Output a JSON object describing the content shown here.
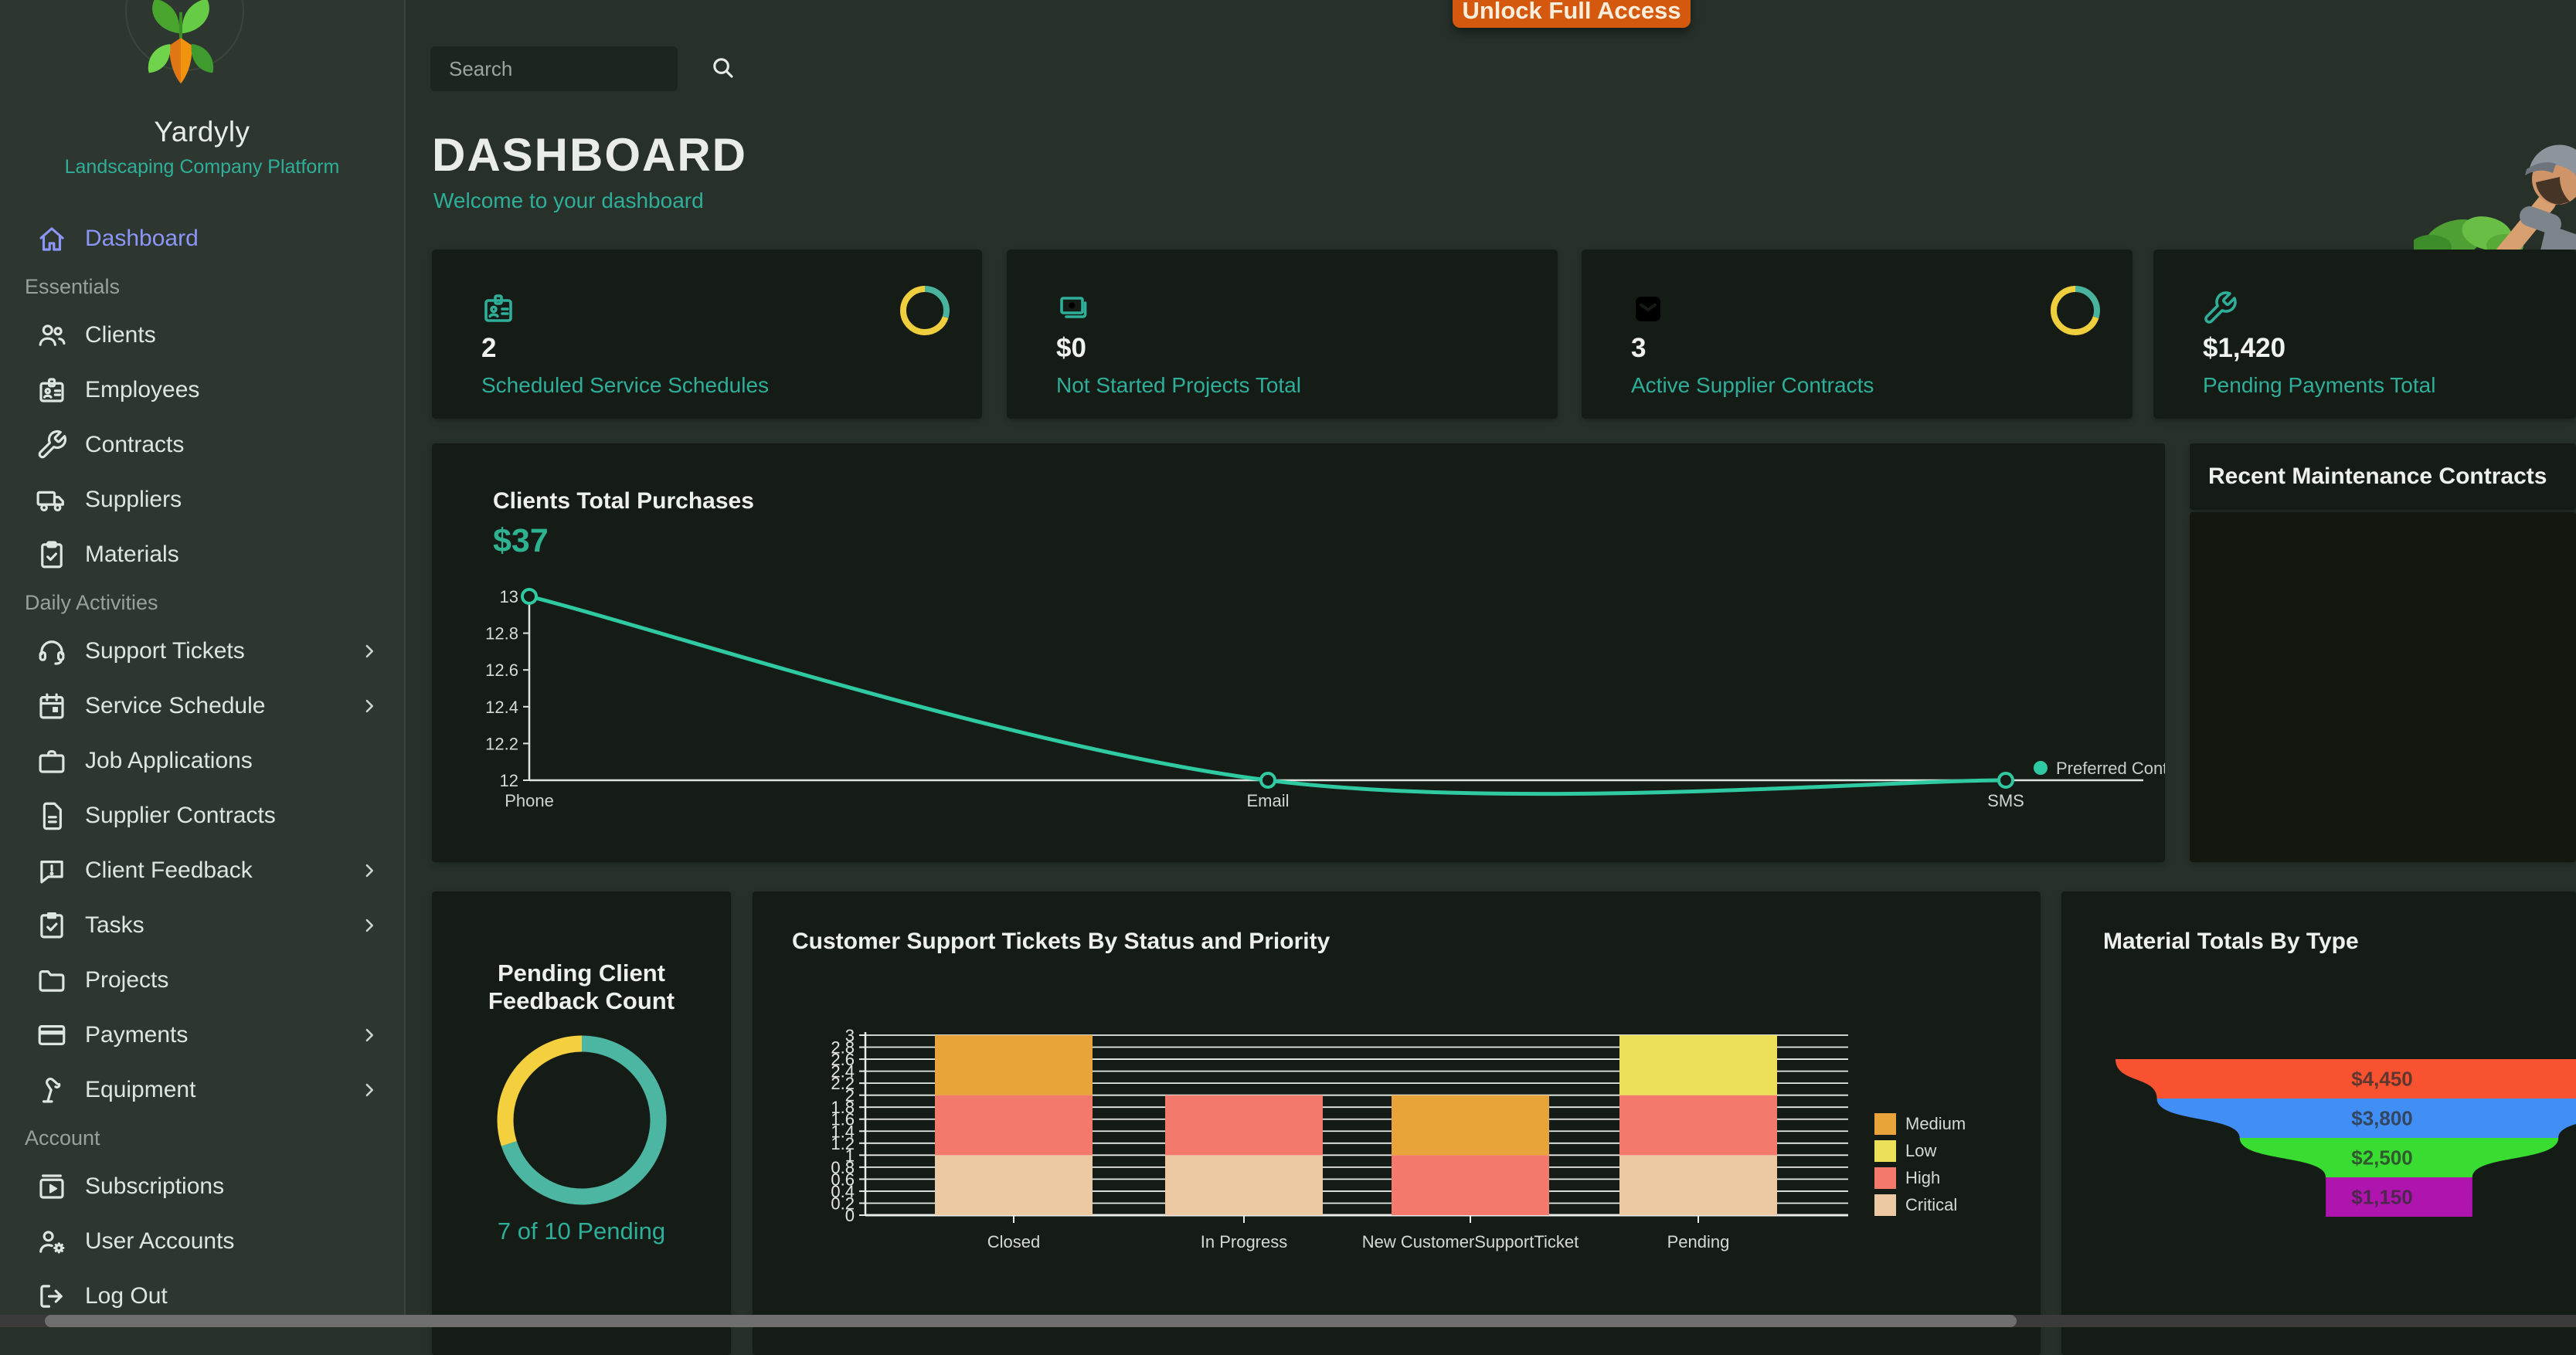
{
  "app": {
    "name": "Yardyly",
    "tagline": "Landscaping Company Platform"
  },
  "topbar": {
    "search_placeholder": "Search",
    "unlock_button": "Unlock Full Access"
  },
  "header": {
    "title": "DASHBOARD",
    "subtitle": "Welcome to your dashboard"
  },
  "sidebar": {
    "primary": {
      "label": "Dashboard",
      "icon": "home"
    },
    "sections": [
      {
        "title": "Essentials",
        "items": [
          {
            "label": "Clients",
            "icon": "users",
            "expandable": false
          },
          {
            "label": "Employees",
            "icon": "id-badge",
            "expandable": false
          },
          {
            "label": "Contracts",
            "icon": "wrench",
            "expandable": false
          },
          {
            "label": "Suppliers",
            "icon": "truck",
            "expandable": false
          },
          {
            "label": "Materials",
            "icon": "clipboard-check",
            "expandable": false
          }
        ]
      },
      {
        "title": "Daily Activities",
        "items": [
          {
            "label": "Support Tickets",
            "icon": "headset",
            "expandable": true
          },
          {
            "label": "Service Schedule",
            "icon": "calendar",
            "expandable": true
          },
          {
            "label": "Job Applications",
            "icon": "briefcase",
            "expandable": false
          },
          {
            "label": "Supplier Contracts",
            "icon": "file",
            "expandable": false
          },
          {
            "label": "Client Feedback",
            "icon": "chat-alert",
            "expandable": true
          },
          {
            "label": "Tasks",
            "icon": "tasks",
            "expandable": true
          },
          {
            "label": "Projects",
            "icon": "folder",
            "expandable": false
          },
          {
            "label": "Payments",
            "icon": "credit-card",
            "expandable": true
          },
          {
            "label": "Equipment",
            "icon": "lamp",
            "expandable": true
          }
        ]
      },
      {
        "title": "Account",
        "items": [
          {
            "label": "Subscriptions",
            "icon": "subscriptions",
            "expandable": false
          },
          {
            "label": "User Accounts",
            "icon": "user-gear",
            "expandable": false
          }
        ]
      }
    ],
    "footer_item": {
      "label": "Log Out",
      "icon": "logout"
    }
  },
  "stat_cards": [
    {
      "icon": "id-badge",
      "value": "2",
      "label": "Scheduled Service Schedules",
      "ring": true
    },
    {
      "icon": "cash",
      "value": "$0",
      "label": "Not Started Projects Total",
      "ring": false
    },
    {
      "icon": "inbox",
      "value": "3",
      "label": "Active Supplier Contracts",
      "ring": true
    },
    {
      "icon": "wrench",
      "value": "$1,420",
      "label": "Pending Payments Total",
      "ring": false
    }
  ],
  "panels": {
    "purchases": {
      "title": "Clients Total Purchases",
      "value": "$37",
      "legend": "Preferred Cont"
    },
    "recent_contracts": {
      "title": "Recent Maintenance Contracts"
    },
    "feedback": {
      "title_line1": "Pending Client",
      "title_line2": "Feedback Count",
      "caption": "7 of 10 Pending"
    },
    "tickets": {
      "title": "Customer Support Tickets By Status and Priority"
    },
    "materials": {
      "title": "Material Totals By Type"
    }
  },
  "chart_data": [
    {
      "id": "purchases_line",
      "type": "line",
      "title": "Clients Total Purchases",
      "total_value": "$37",
      "categories": [
        "Phone",
        "Email",
        "SMS"
      ],
      "values": [
        13,
        12,
        12
      ],
      "ylim": [
        12,
        13
      ],
      "yticks": [
        "13",
        "12.8",
        "12.6",
        "12.4",
        "12.2",
        "12"
      ],
      "series_name": "Preferred Cont",
      "color": "#2fc9a2",
      "legend_position": "right"
    },
    {
      "id": "feedback_donut",
      "type": "pie",
      "title": "Pending Client Feedback Count",
      "caption": "7 of 10 Pending",
      "slices": [
        {
          "label": "Pending",
          "value": 7,
          "color": "#4db6a3"
        },
        {
          "label": "Remaining",
          "value": 3,
          "color": "#f4cf3e"
        }
      ]
    },
    {
      "id": "stat_ring",
      "type": "pie",
      "slices": [
        {
          "label": "teal",
          "value": 30,
          "color": "#49b39e"
        },
        {
          "label": "yellow",
          "value": 70,
          "color": "#f0cf3f"
        }
      ]
    },
    {
      "id": "tickets_stacked_bar",
      "type": "bar",
      "title": "Customer Support Tickets By Status and Priority",
      "categories": [
        "Closed",
        "In Progress",
        "New CustomerSupportTicket",
        "Pending"
      ],
      "series": [
        {
          "name": "Critical",
          "color": "#ecc9a3",
          "values": [
            1,
            1,
            0,
            1
          ]
        },
        {
          "name": "High",
          "color": "#f3796c",
          "values": [
            1,
            1,
            1,
            1
          ]
        },
        {
          "name": "Medium",
          "color": "#e8a33b",
          "values": [
            1,
            0,
            1,
            0
          ]
        },
        {
          "name": "Low",
          "color": "#ece05a",
          "values": [
            0,
            0,
            0,
            1
          ]
        }
      ],
      "legend_order": [
        "Medium",
        "Low",
        "High",
        "Critical"
      ],
      "ylim": [
        0,
        3
      ],
      "ytick_step": 0.2,
      "grid": true,
      "legend_position": "right"
    },
    {
      "id": "materials_funnel",
      "type": "funnel",
      "title": "Material Totals By Type",
      "segments": [
        {
          "label": "$4,450",
          "value": 4450,
          "color": "#f95230"
        },
        {
          "label": "$3,800",
          "value": 3800,
          "color": "#418ef5"
        },
        {
          "label": "$2,500",
          "value": 2500,
          "color": "#39dd31"
        },
        {
          "label": "$1,150",
          "value": 1150,
          "color": "#b014ae"
        }
      ],
      "label_color": "#2e2e2e"
    }
  ],
  "colors": {
    "accent_teal": "#2fae9a",
    "line_teal": "#2fc9a2",
    "active_nav": "#8b96f8",
    "button_orange": "#d4590f",
    "donut_teal": "#4db6a3",
    "donut_yellow": "#f4cf3e",
    "sidebar_bg": "#2d372f",
    "main_bg": "#27312a",
    "card_bg": "#151c16"
  }
}
